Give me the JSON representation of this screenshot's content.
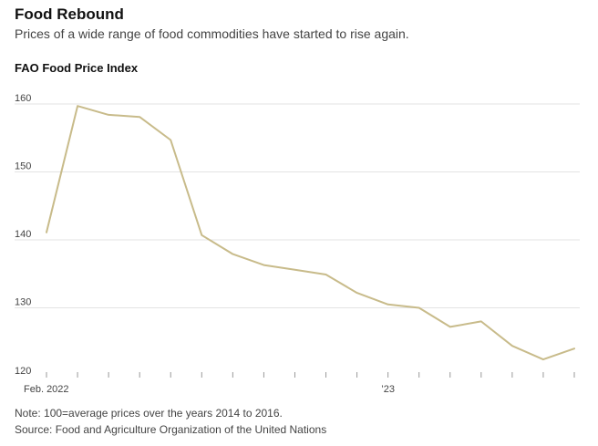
{
  "header": {
    "title": "Food Rebound",
    "subtitle": "Prices of a wide range of food commodities have started to rise again."
  },
  "footer": {
    "note": "Note: 100=average prices over the years 2014 to 2016.",
    "source": "Source: Food and Agriculture Organization of the United Nations"
  },
  "colors": {
    "line": "#c8bb8a",
    "grid": "#e3e3e3",
    "tick": "#999999"
  },
  "chart_data": {
    "type": "line",
    "title": "FAO Food Price Index",
    "xlabel": "",
    "ylabel": "",
    "ylim": [
      120,
      160
    ],
    "yticks": [
      120,
      130,
      140,
      150,
      160
    ],
    "ytick_labels": [
      "120",
      "130",
      "140",
      "150",
      "160"
    ],
    "grid": true,
    "x_month_index_range": [
      0,
      17
    ],
    "xtick_labels": [
      {
        "index": 0,
        "label": "Feb. 2022"
      },
      {
        "index": 11,
        "label": "’23"
      }
    ],
    "series": [
      {
        "name": "FAO Food Price Index",
        "x": [
          "Feb. 2022",
          "Mar. 2022",
          "Apr. 2022",
          "May 2022",
          "Jun. 2022",
          "Jul. 2022",
          "Aug. 2022",
          "Sep. 2022",
          "Oct. 2022",
          "Nov. 2022",
          "Dec. 2022",
          "Jan. 2023",
          "Feb. 2023",
          "Mar. 2023",
          "Apr. 2023",
          "May 2023",
          "Jun. 2023",
          "Jul. 2023"
        ],
        "values": [
          141.1,
          159.7,
          158.4,
          158.1,
          154.7,
          140.7,
          137.9,
          136.3,
          135.6,
          134.9,
          132.2,
          130.5,
          130.0,
          127.2,
          128.0,
          124.4,
          122.4,
          124.0
        ]
      }
    ]
  }
}
